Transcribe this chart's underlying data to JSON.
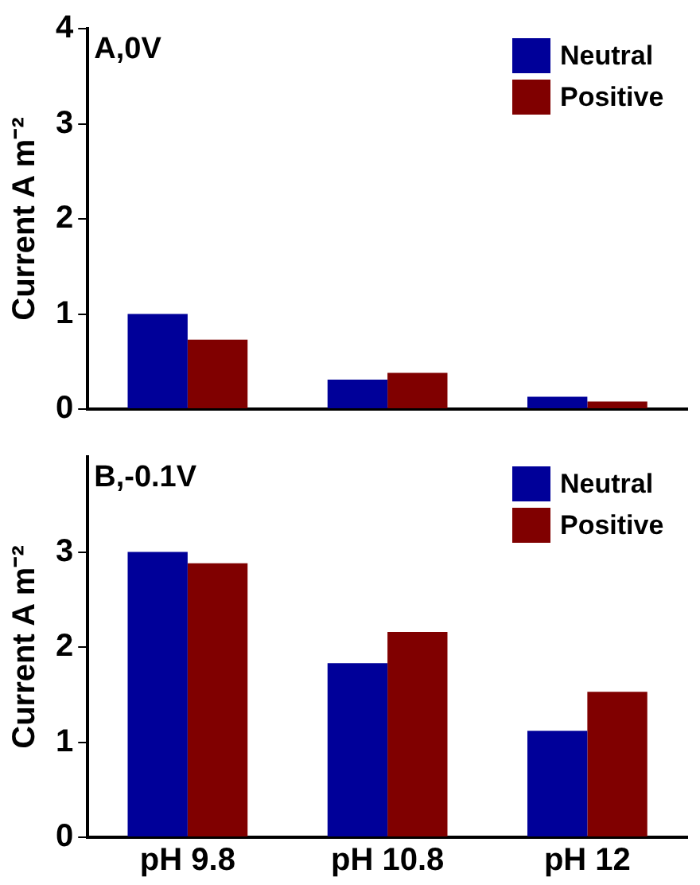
{
  "chart_data": [
    {
      "type": "bar",
      "title": "A,0V",
      "ylabel": "Current A m⁻²",
      "categories": [
        null,
        null,
        null
      ],
      "series": [
        {
          "name": "Neutral",
          "color": "#000099",
          "values": [
            1.0,
            0.31,
            0.13
          ]
        },
        {
          "name": "Positive",
          "color": "#800000",
          "values": [
            0.73,
            0.38,
            0.08
          ]
        }
      ],
      "ylim": [
        0,
        4
      ],
      "yticks": [
        0,
        1,
        2,
        3,
        4
      ],
      "legend": "top right",
      "grid": false,
      "tick_labels": "y"
    },
    {
      "type": "bar",
      "title": "B,-0.1V",
      "ylabel": "Current A m⁻²",
      "categories": [
        "pH 9.8",
        "pH 10.8",
        "pH 12"
      ],
      "series": [
        {
          "name": "Neutral",
          "color": "#000099",
          "values": [
            3.0,
            1.83,
            1.12
          ]
        },
        {
          "name": "Positive",
          "color": "#800000",
          "values": [
            2.88,
            2.16,
            1.53
          ]
        }
      ],
      "ylim": [
        0,
        4
      ],
      "yticks": [
        0,
        1,
        2,
        3
      ],
      "legend": "top right",
      "grid": false
    }
  ]
}
